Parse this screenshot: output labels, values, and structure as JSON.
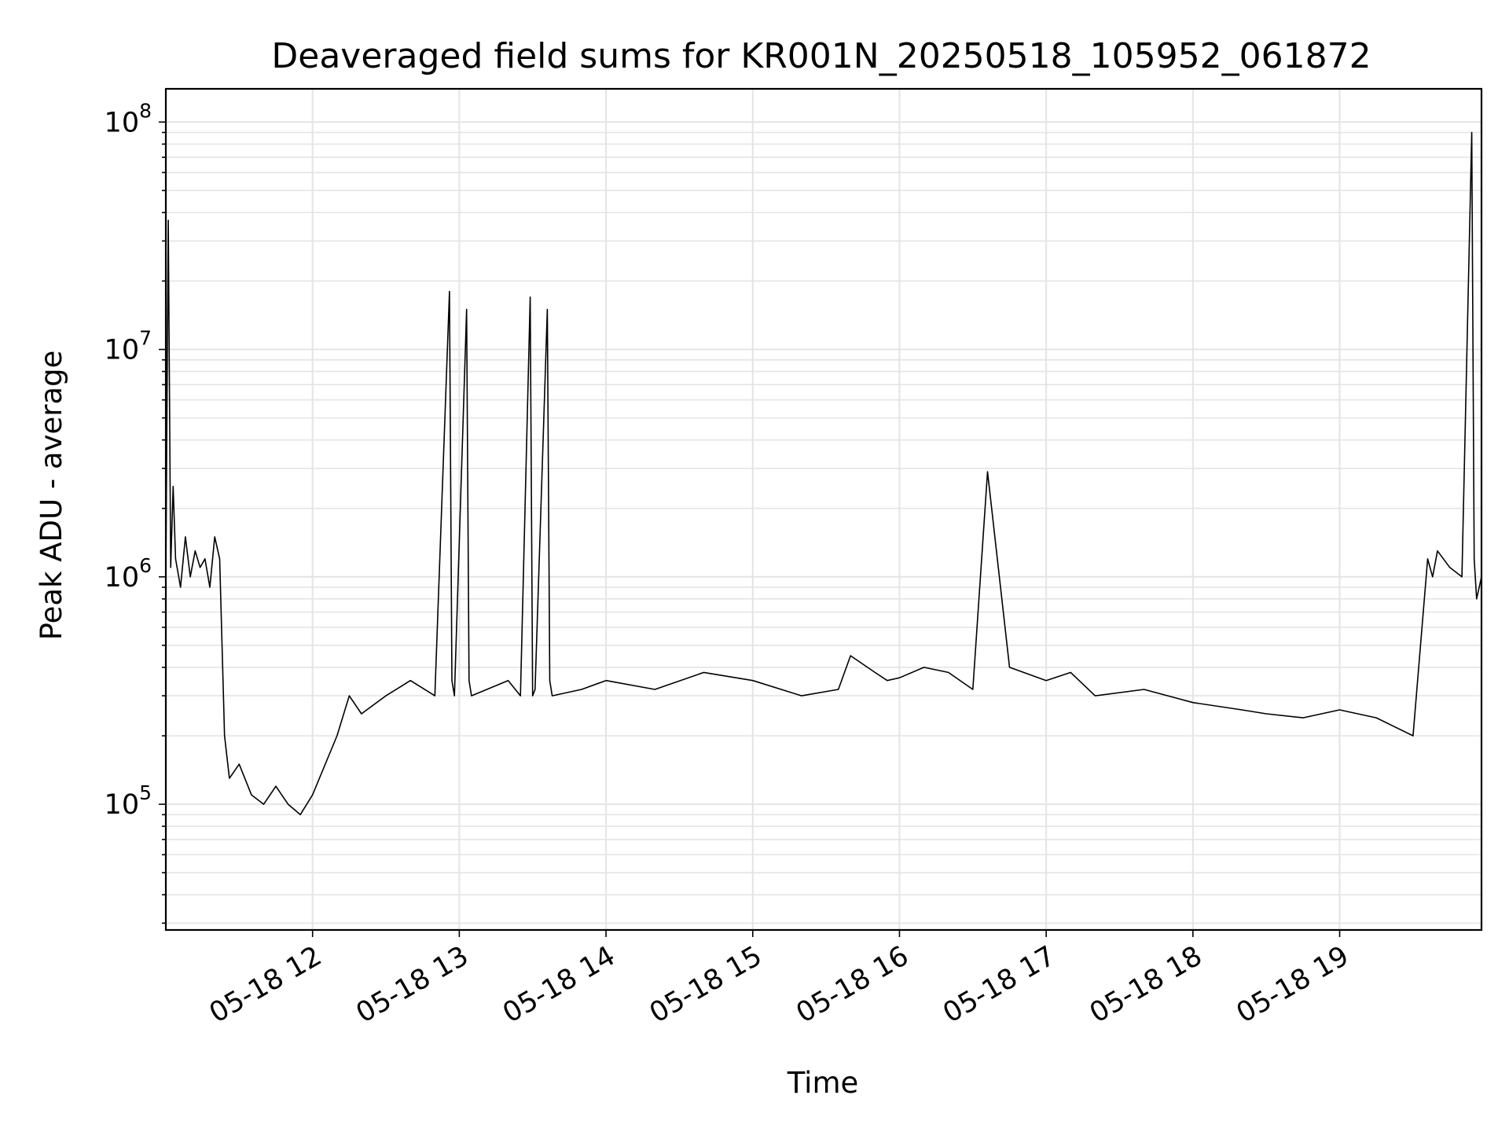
{
  "chart_data": {
    "type": "line",
    "title": "Deaveraged field sums for KR001N_20250518_105952_061872",
    "xlabel": "Time",
    "ylabel": "Peak ADU - average",
    "yscale": "log",
    "ylim": [
      28000,
      140000000
    ],
    "xlim": [
      "2025-05-18 11:00",
      "2025-05-18 19:58"
    ],
    "grid": true,
    "line_color": "#000000",
    "x_ticks": [
      {
        "value": "2025-05-18 12:00",
        "label": "05-18 12"
      },
      {
        "value": "2025-05-18 13:00",
        "label": "05-18 13"
      },
      {
        "value": "2025-05-18 14:00",
        "label": "05-18 14"
      },
      {
        "value": "2025-05-18 15:00",
        "label": "05-18 15"
      },
      {
        "value": "2025-05-18 16:00",
        "label": "05-18 16"
      },
      {
        "value": "2025-05-18 17:00",
        "label": "05-18 17"
      },
      {
        "value": "2025-05-18 18:00",
        "label": "05-18 18"
      },
      {
        "value": "2025-05-18 19:00",
        "label": "05-18 19"
      }
    ],
    "y_ticks": [
      {
        "value": 100000,
        "base": "10",
        "exp": "5"
      },
      {
        "value": 1000000,
        "base": "10",
        "exp": "6"
      },
      {
        "value": 10000000,
        "base": "10",
        "exp": "7"
      },
      {
        "value": 100000000,
        "base": "10",
        "exp": "8"
      }
    ],
    "series": [
      {
        "x": [
          "2025-05-18 11:00",
          "2025-05-18 11:01",
          "2025-05-18 11:02",
          "2025-05-18 11:03",
          "2025-05-18 11:04",
          "2025-05-18 11:06",
          "2025-05-18 11:08",
          "2025-05-18 11:10",
          "2025-05-18 11:12",
          "2025-05-18 11:14",
          "2025-05-18 11:16",
          "2025-05-18 11:18",
          "2025-05-18 11:20",
          "2025-05-18 11:22",
          "2025-05-18 11:24",
          "2025-05-18 11:26",
          "2025-05-18 11:30",
          "2025-05-18 11:35",
          "2025-05-18 11:40",
          "2025-05-18 11:45",
          "2025-05-18 11:50",
          "2025-05-18 11:55",
          "2025-05-18 12:00",
          "2025-05-18 12:10",
          "2025-05-18 12:15",
          "2025-05-18 12:20",
          "2025-05-18 12:30",
          "2025-05-18 12:40",
          "2025-05-18 12:50",
          "2025-05-18 12:56",
          "2025-05-18 12:57",
          "2025-05-18 12:58",
          "2025-05-18 13:03",
          "2025-05-18 13:04",
          "2025-05-18 13:05",
          "2025-05-18 13:20",
          "2025-05-18 13:25",
          "2025-05-18 13:29",
          "2025-05-18 13:30",
          "2025-05-18 13:31",
          "2025-05-18 13:36",
          "2025-05-18 13:37",
          "2025-05-18 13:38",
          "2025-05-18 13:50",
          "2025-05-18 14:00",
          "2025-05-18 14:20",
          "2025-05-18 14:40",
          "2025-05-18 15:00",
          "2025-05-18 15:20",
          "2025-05-18 15:35",
          "2025-05-18 15:40",
          "2025-05-18 15:50",
          "2025-05-18 15:55",
          "2025-05-18 16:00",
          "2025-05-18 16:10",
          "2025-05-18 16:20",
          "2025-05-18 16:30",
          "2025-05-18 16:36",
          "2025-05-18 16:45",
          "2025-05-18 17:00",
          "2025-05-18 17:10",
          "2025-05-18 17:20",
          "2025-05-18 17:40",
          "2025-05-18 18:00",
          "2025-05-18 18:20",
          "2025-05-18 18:30",
          "2025-05-18 18:45",
          "2025-05-18 19:00",
          "2025-05-18 19:15",
          "2025-05-18 19:30",
          "2025-05-18 19:36",
          "2025-05-18 19:38",
          "2025-05-18 19:40",
          "2025-05-18 19:45",
          "2025-05-18 19:50",
          "2025-05-18 19:54",
          "2025-05-18 19:55",
          "2025-05-18 19:56",
          "2025-05-18 19:58"
        ],
        "y": [
          1000000,
          37000000,
          1100000,
          2500000,
          1200000,
          900000,
          1500000,
          1000000,
          1300000,
          1100000,
          1200000,
          900000,
          1500000,
          1200000,
          200000,
          130000,
          150000,
          110000,
          100000,
          120000,
          100000,
          90000,
          110000,
          200000,
          300000,
          250000,
          300000,
          350000,
          300000,
          18000000,
          350000,
          300000,
          15000000,
          350000,
          300000,
          350000,
          300000,
          17000000,
          300000,
          320000,
          15000000,
          350000,
          300000,
          320000,
          350000,
          320000,
          380000,
          350000,
          300000,
          320000,
          450000,
          380000,
          350000,
          360000,
          400000,
          380000,
          320000,
          2900000,
          400000,
          350000,
          380000,
          300000,
          320000,
          280000,
          260000,
          250000,
          240000,
          260000,
          240000,
          200000,
          1200000,
          1000000,
          1300000,
          1100000,
          1000000,
          90000000,
          1200000,
          800000,
          1000000
        ]
      }
    ]
  }
}
